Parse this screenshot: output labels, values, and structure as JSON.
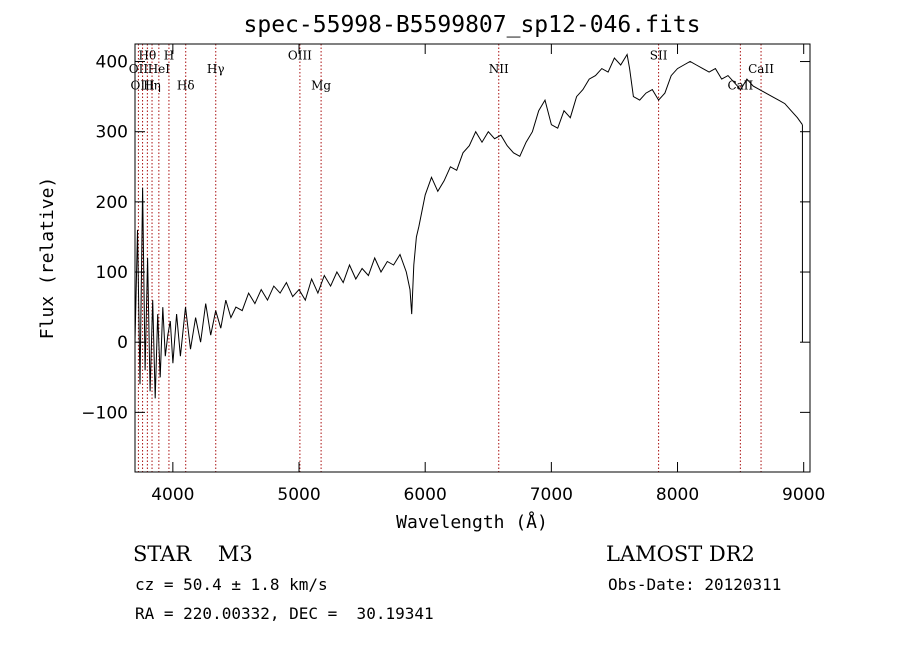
{
  "chart_data": {
    "type": "line",
    "title": "spec-55998-B5599807_sp12-046.fits",
    "xlabel": "Wavelength (Å)",
    "ylabel": "Flux (relative)",
    "xlim": [
      3700,
      9050
    ],
    "ylim": [
      -185,
      425
    ],
    "x_ticks": [
      4000,
      5000,
      6000,
      7000,
      8000,
      9000
    ],
    "y_ticks": [
      -100,
      0,
      100,
      200,
      300,
      400
    ],
    "x_tick_labels": [
      "4000",
      "5000",
      "6000",
      "7000",
      "8000",
      "9000"
    ],
    "y_tick_labels": [
      "−100",
      "0",
      "100",
      "200",
      "300",
      "400"
    ],
    "grid": false,
    "series": [
      {
        "color": "#000000",
        "x": [
          3700,
          3720,
          3740,
          3760,
          3780,
          3800,
          3820,
          3840,
          3860,
          3880,
          3900,
          3920,
          3940,
          3960,
          3980,
          4000,
          4030,
          4060,
          4100,
          4140,
          4180,
          4220,
          4260,
          4300,
          4340,
          4380,
          4420,
          4460,
          4500,
          4550,
          4600,
          4650,
          4700,
          4750,
          4800,
          4850,
          4900,
          4950,
          5000,
          5050,
          5100,
          5150,
          5200,
          5250,
          5300,
          5350,
          5400,
          5450,
          5500,
          5550,
          5600,
          5650,
          5700,
          5750,
          5800,
          5850,
          5880,
          5893,
          5910,
          5930,
          5950,
          6000,
          6050,
          6100,
          6150,
          6200,
          6250,
          6300,
          6350,
          6400,
          6450,
          6500,
          6550,
          6600,
          6650,
          6700,
          6750,
          6800,
          6850,
          6900,
          6950,
          7000,
          7050,
          7100,
          7150,
          7200,
          7250,
          7300,
          7350,
          7400,
          7450,
          7500,
          7550,
          7600,
          7620,
          7650,
          7700,
          7750,
          7800,
          7850,
          7900,
          7950,
          8000,
          8050,
          8100,
          8150,
          8200,
          8250,
          8300,
          8350,
          8400,
          8450,
          8500,
          8550,
          8600,
          8650,
          8700,
          8750,
          8800,
          8850,
          8900,
          8950,
          8990
        ],
        "y": [
          0,
          160,
          -60,
          220,
          -40,
          120,
          -70,
          60,
          -80,
          40,
          -50,
          50,
          -20,
          10,
          30,
          -30,
          40,
          -20,
          50,
          -10,
          35,
          0,
          55,
          10,
          45,
          20,
          60,
          35,
          50,
          45,
          70,
          55,
          75,
          60,
          80,
          70,
          85,
          65,
          75,
          60,
          90,
          70,
          95,
          80,
          100,
          85,
          110,
          90,
          105,
          95,
          120,
          100,
          115,
          110,
          125,
          100,
          75,
          40,
          110,
          150,
          165,
          210,
          235,
          215,
          230,
          250,
          245,
          270,
          280,
          300,
          285,
          300,
          290,
          295,
          280,
          270,
          265,
          285,
          300,
          330,
          345,
          310,
          305,
          330,
          320,
          350,
          360,
          375,
          380,
          390,
          385,
          405,
          395,
          410,
          390,
          350,
          345,
          355,
          360,
          345,
          355,
          380,
          390,
          395,
          400,
          395,
          390,
          385,
          390,
          375,
          380,
          370,
          360,
          375,
          365,
          360,
          355,
          350,
          345,
          340,
          330,
          320,
          310
        ]
      }
    ],
    "lines": [
      {
        "label": "Hθ",
        "x": 3798,
        "yl": 403,
        "row": 1
      },
      {
        "label": "OII",
        "x": 3727,
        "yl": 384,
        "row": 2
      },
      {
        "label": "HeI",
        "x": 3889,
        "yl": 384,
        "row": 2
      },
      {
        "label": "H",
        "x": 3969,
        "yl": 403,
        "row": 1
      },
      {
        "label": "OIII",
        "x": 3760,
        "yl": 360,
        "row": 3
      },
      {
        "label": "Hη",
        "x": 3835,
        "yl": 360,
        "row": 3
      },
      {
        "label": "Hδ",
        "x": 4102,
        "yl": 360,
        "row": 3
      },
      {
        "label": "Hγ",
        "x": 4340,
        "yl": 384,
        "row": 2
      },
      {
        "label": "OIII",
        "x": 5007,
        "yl": 403,
        "row": 1
      },
      {
        "label": "Mg",
        "x": 5175,
        "yl": 360,
        "row": 3
      },
      {
        "label": "NII",
        "x": 6583,
        "yl": 384,
        "row": 2
      },
      {
        "label": "SII",
        "x": 7850,
        "yl": 403,
        "row": 1
      },
      {
        "label": "CaII",
        "x": 8498,
        "yl": 360,
        "row": 3
      },
      {
        "label": "CaII",
        "x": 8662,
        "yl": 384,
        "row": 2
      }
    ]
  },
  "info": {
    "class_line": "STAR    M3",
    "survey": "LAMOST DR2",
    "cz": "cz = 50.4 ± 1.8 km/s",
    "obs_date": "Obs-Date: 20120311",
    "radec": "RA = 220.00332, DEC =  30.19341"
  }
}
